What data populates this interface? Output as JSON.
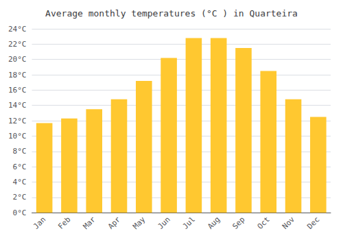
{
  "chart_data": {
    "type": "bar",
    "title": "Average monthly temperatures (°C ) in Quarteira",
    "categories": [
      "Jan",
      "Feb",
      "Mar",
      "Apr",
      "May",
      "Jun",
      "Jul",
      "Aug",
      "Sep",
      "Oct",
      "Nov",
      "Dec"
    ],
    "values": [
      11.7,
      12.3,
      13.5,
      14.8,
      17.2,
      20.2,
      22.8,
      22.8,
      21.5,
      18.5,
      14.8,
      12.5
    ],
    "color": "#FFC830",
    "ylim": [
      0,
      24
    ],
    "yticks": [
      {
        "value": 0,
        "label": "0°C"
      },
      {
        "value": 2,
        "label": "2°C"
      },
      {
        "value": 4,
        "label": "4°C"
      },
      {
        "value": 6,
        "label": "6°C"
      },
      {
        "value": 8,
        "label": "8°C"
      },
      {
        "value": 10,
        "label": "10°C"
      },
      {
        "value": 12,
        "label": "12°C"
      },
      {
        "value": 14,
        "label": "14°C"
      },
      {
        "value": 16,
        "label": "16°C"
      },
      {
        "value": 18,
        "label": "18°C"
      },
      {
        "value": 20,
        "label": "20°C"
      },
      {
        "value": 22,
        "label": "22°C"
      },
      {
        "value": 24,
        "label": "24°C"
      }
    ],
    "grid": true
  }
}
